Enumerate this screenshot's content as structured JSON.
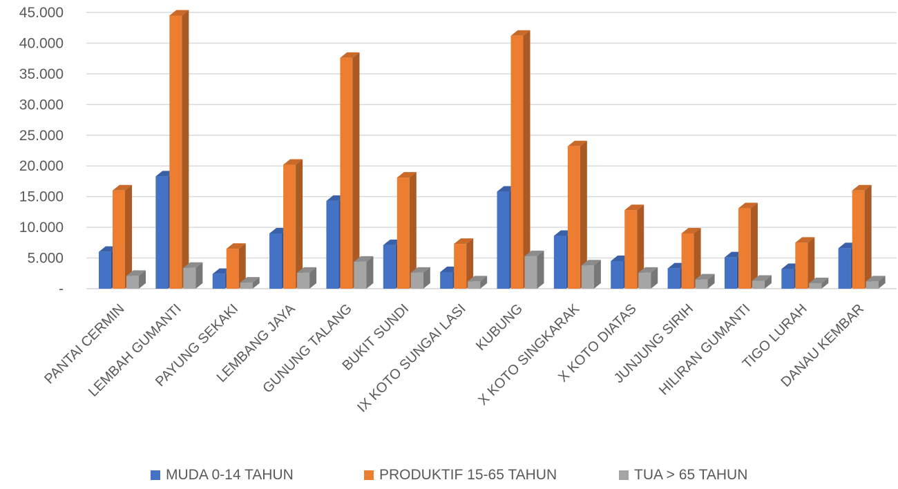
{
  "chart_data": {
    "type": "bar",
    "style": "3d-clustered-column",
    "categories": [
      "PANTAI CERMIN",
      "LEMBAH GUMANTI",
      "PAYUNG SEKAKI",
      "LEMBANG JAYA",
      "GUNUNG TALANG",
      "BUKIT SUNDI",
      "IX KOTO SUNGAI LASI",
      "KUBUNG",
      "X KOTO SINGKARAK",
      "X KOTO DIATAS",
      "JUNJUNG SIRIH",
      "HILIRAN GUMANTI",
      "TIGO LURAH",
      "DANAU KEMBAR"
    ],
    "series": [
      {
        "name": "MUDA 0-14 TAHUN",
        "color": "#4472C4",
        "values": [
          6000,
          18300,
          2400,
          9000,
          14300,
          7100,
          2700,
          15800,
          8600,
          4500,
          3300,
          5100,
          3200,
          6600
        ]
      },
      {
        "name": "PRODUKTIF 15-65 TAHUN",
        "color": "#ED7D31",
        "values": [
          16000,
          44500,
          6500,
          20200,
          37600,
          18100,
          7300,
          41200,
          23200,
          12800,
          9000,
          13100,
          7500,
          16000
        ]
      },
      {
        "name": "TUA > 65 TAHUN",
        "color": "#A5A5A5",
        "values": [
          2100,
          3400,
          1000,
          2600,
          4400,
          2600,
          1200,
          5300,
          3800,
          2600,
          1500,
          1300,
          900,
          1200
        ]
      }
    ],
    "yticks": [
      "-",
      "5.000",
      "10.000",
      "15.000",
      "20.000",
      "25.000",
      "30.000",
      "35.000",
      "40.000",
      "45.000"
    ],
    "ylim": [
      0,
      45000
    ],
    "grid": true,
    "legend_position": "bottom"
  }
}
